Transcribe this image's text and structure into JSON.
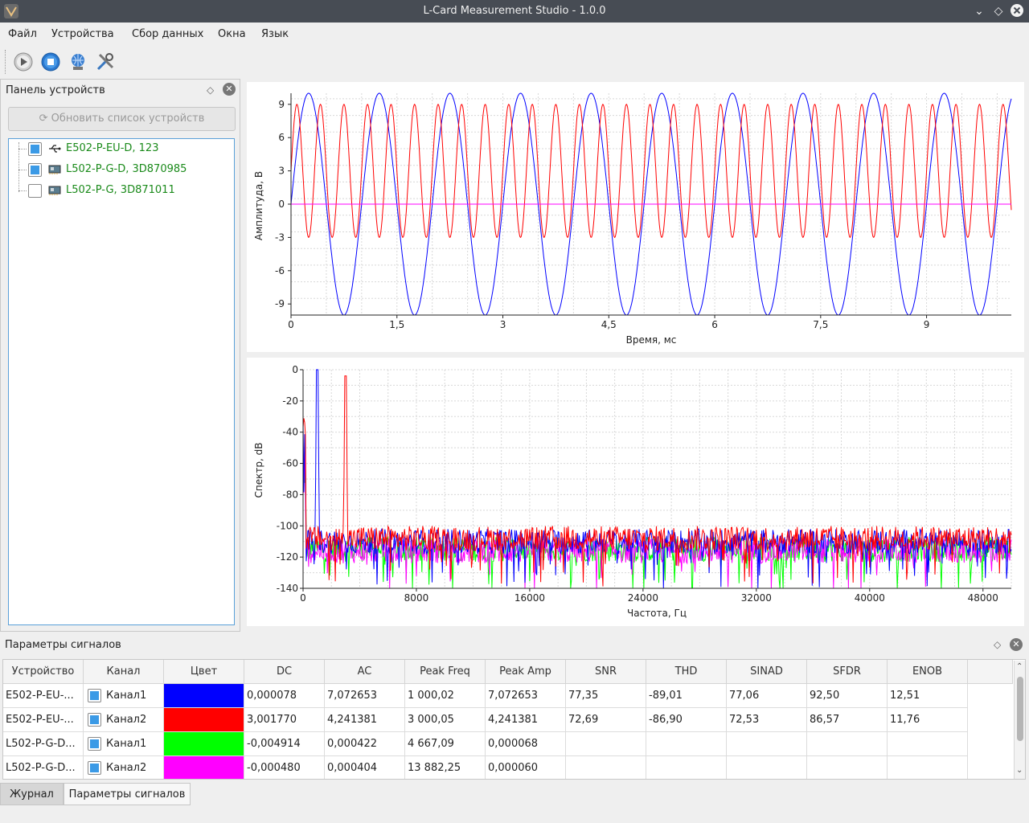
{
  "window": {
    "title": "L-Card Measurement Studio - 1.0.0"
  },
  "menu": [
    "Файл",
    "Устройства",
    "Сбор данных",
    "Окна",
    "Язык"
  ],
  "toolbar": {
    "buttons": [
      "play-icon",
      "stop-icon",
      "network-icon",
      "tools-icon"
    ]
  },
  "devices_panel": {
    "title": "Панель устройств",
    "refresh_label": "Обновить список устройств",
    "devices": [
      {
        "label": "E502-P-EU-D, 123",
        "checked": true,
        "icon": "usb-icon"
      },
      {
        "label": "L502-P-G-D, 3D870985",
        "checked": true,
        "icon": "pci-card-icon"
      },
      {
        "label": "L502-P-G, 3D871011",
        "checked": false,
        "icon": "pci-card-icon"
      }
    ]
  },
  "time_plot": {
    "ylabel": "Амплитуда, В",
    "xlabel": "Время, мс",
    "yticks": [
      "9",
      "6",
      "3",
      "0",
      "-3",
      "-6",
      "-9"
    ],
    "xticks": [
      "0",
      "1,5",
      "3",
      "4,5",
      "6",
      "7,5",
      "9"
    ]
  },
  "spectrum_plot": {
    "ylabel": "Спектр, dB",
    "xlabel": "Частота, Гц",
    "yticks": [
      "0",
      "-20",
      "-40",
      "-60",
      "-80",
      "-100",
      "-120",
      "-140"
    ],
    "xticks": [
      "0",
      "8000",
      "16000",
      "24000",
      "32000",
      "40000",
      "48000"
    ]
  },
  "chart_data": [
    {
      "type": "line",
      "xlabel": "Время, мс",
      "ylabel": "Амплитуда, В",
      "xlim": [
        0,
        10.2
      ],
      "ylim": [
        -10,
        10
      ],
      "series": [
        {
          "color": "#0000ff",
          "kind": "sine",
          "freq_khz": 1.0,
          "amplitude": 10,
          "offset": 0
        },
        {
          "color": "#ff0000",
          "kind": "sine",
          "freq_khz": 3.0,
          "amplitude": 6,
          "offset": 3
        },
        {
          "color": "#00ff00",
          "kind": "flat",
          "value": 0
        },
        {
          "color": "#ff00ff",
          "kind": "flat",
          "value": 0
        }
      ]
    },
    {
      "type": "line",
      "xlabel": "Частота, Гц",
      "ylabel": "Спектр, dB",
      "xlim": [
        0,
        50000
      ],
      "ylim": [
        -140,
        0
      ],
      "series": [
        {
          "color": "#0000ff",
          "peak_hz": 1000,
          "peak_db": 0,
          "noise_floor_db": -110
        },
        {
          "color": "#ff0000",
          "peak_hz": 3000,
          "peak_db": -4,
          "noise_floor_db": -108
        },
        {
          "color": "#00ff00",
          "noise_floor_db": -115
        },
        {
          "color": "#ff00ff",
          "noise_floor_db": -116
        }
      ]
    }
  ],
  "signals_panel": {
    "title": "Параметры сигналов",
    "columns": [
      "Устройство",
      "Канал",
      "Цвет",
      "DC",
      "AC",
      "Peak Freq",
      "Peak Amp",
      "SNR",
      "THD",
      "SINAD",
      "SFDR",
      "ENOB"
    ],
    "rows": [
      {
        "device": "E502-P-EU-...",
        "channel": "Канал1",
        "color": "#0000ff",
        "dc": "0,000078",
        "ac": "7,072653",
        "peak_freq": "1 000,02",
        "peak_amp": "7,072653",
        "snr": "77,35",
        "thd": "-89,01",
        "sinad": "77,06",
        "sfdr": "92,50",
        "enob": "12,51"
      },
      {
        "device": "E502-P-EU-...",
        "channel": "Канал2",
        "color": "#ff0000",
        "dc": "3,001770",
        "ac": "4,241381",
        "peak_freq": "3 000,05",
        "peak_amp": "4,241381",
        "snr": "72,69",
        "thd": "-86,90",
        "sinad": "72,53",
        "sfdr": "86,57",
        "enob": "11,76"
      },
      {
        "device": "L502-P-G-D...",
        "channel": "Канал1",
        "color": "#00ff00",
        "dc": "-0,004914",
        "ac": "0,000422",
        "peak_freq": "4 667,09",
        "peak_amp": "0,000068",
        "snr": "",
        "thd": "",
        "sinad": "",
        "sfdr": "",
        "enob": ""
      },
      {
        "device": "L502-P-G-D...",
        "channel": "Канал2",
        "color": "#ff00ff",
        "dc": "-0,000480",
        "ac": "0,000404",
        "peak_freq": "13 882,25",
        "peak_amp": "0,000060",
        "snr": "",
        "thd": "",
        "sinad": "",
        "sfdr": "",
        "enob": ""
      }
    ]
  },
  "bottom_tabs": [
    "Журнал",
    "Параметры сигналов"
  ]
}
